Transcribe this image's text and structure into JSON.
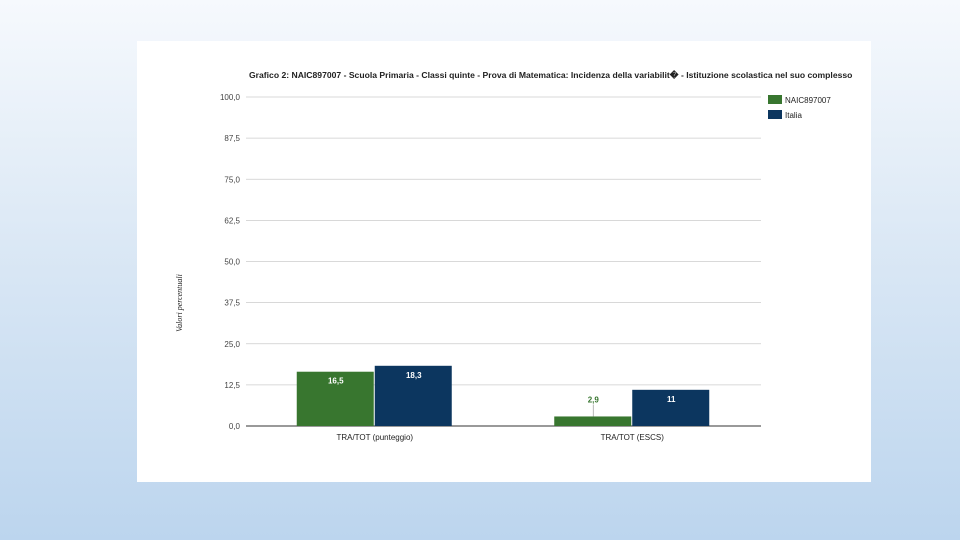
{
  "chart_data": {
    "type": "bar",
    "title": "Grafico 2: NAIC897007 - Scuola Primaria - Classi quinte - Prova di Matematica: Incidenza della variabilit� - Istituzione scolastica nel suo complesso",
    "ylabel": "Valori percentuali",
    "xlabel": "",
    "ylim": [
      0,
      100
    ],
    "yticks": [
      "0,0",
      "12,5",
      "25,0",
      "37,5",
      "50,0",
      "62,5",
      "75,0",
      "87,5",
      "100,0"
    ],
    "grid": true,
    "legend_position": "right",
    "categories": [
      "TRA/TOT (punteggio)",
      "TRA/TOT (ESCS)"
    ],
    "series": [
      {
        "name": "NAIC897007",
        "color": "#38762f",
        "values": [
          16.5,
          2.9
        ],
        "labels": [
          "16,5",
          "2,9"
        ]
      },
      {
        "name": "Italia",
        "color": "#0c365f",
        "values": [
          18.3,
          11
        ],
        "labels": [
          "18,3",
          "11"
        ]
      }
    ]
  }
}
